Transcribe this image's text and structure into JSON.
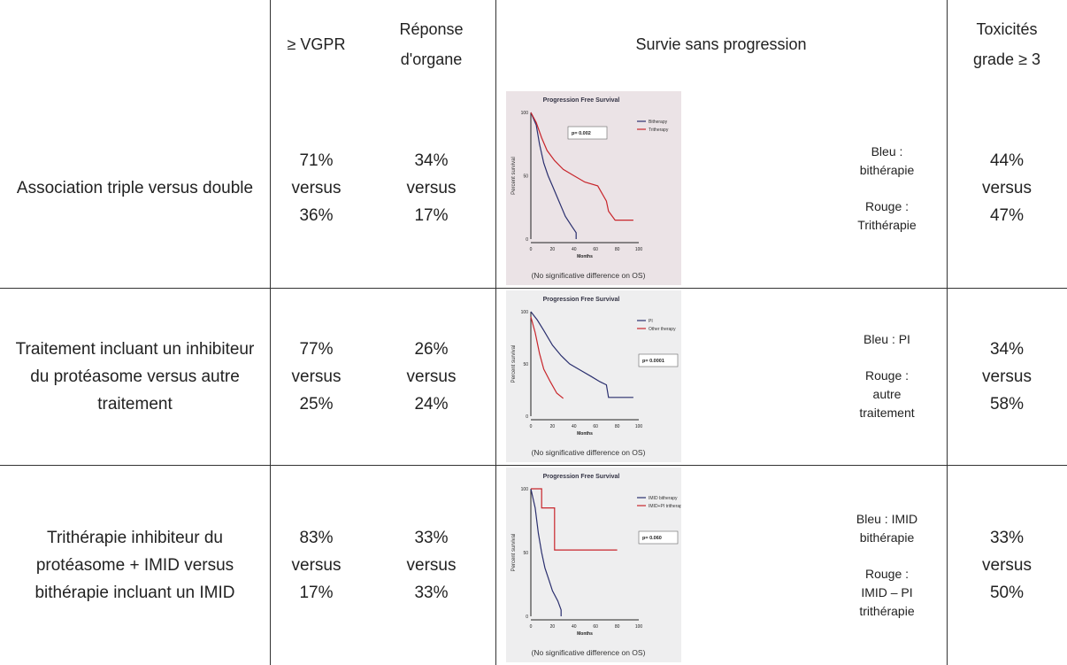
{
  "header": {
    "vgpr": "≥ VGPR",
    "organe": "Réponse d'organe",
    "survie": "Survie sans progression",
    "toxicites": "Toxicités grade ≥ 3"
  },
  "rows": [
    {
      "label": "Association triple versus double",
      "vgpr": [
        "71%",
        "versus",
        "36%"
      ],
      "organe": [
        "34%",
        "versus",
        "17%"
      ],
      "plot": {
        "title": "Progression Free Survival",
        "p_value": "p= 0.002",
        "legend": [
          "Bitherapy",
          "Tritherapy"
        ],
        "y_label": "Percent survival",
        "x_label": "Months",
        "yticks": [
          "0",
          "50",
          "100"
        ],
        "xticks": [
          "0",
          "20",
          "40",
          "60",
          "80",
          "100"
        ],
        "note": "(No significative difference on OS)"
      },
      "colors": [
        "Bleu : bithérapie",
        "Rouge : Trithérapie"
      ],
      "toxicites": [
        "44%",
        "versus",
        "47%"
      ]
    },
    {
      "label": "Traitement incluant un inhibiteur du protéasome versus autre traitement",
      "vgpr": [
        "77%",
        "versus",
        "25%"
      ],
      "organe": [
        "26%",
        "versus",
        "24%"
      ],
      "plot": {
        "title": "Progression Free Survival",
        "p_value": "p= 0.0001",
        "legend": [
          "PI",
          "Other therapy"
        ],
        "y_label": "Percent survival",
        "x_label": "Months",
        "yticks": [
          "0",
          "50",
          "100"
        ],
        "xticks": [
          "0",
          "20",
          "40",
          "60",
          "80",
          "100"
        ],
        "note": "(No significative difference on OS)"
      },
      "colors": [
        "Bleu : PI",
        "Rouge : autre traitement"
      ],
      "toxicites": [
        "34%",
        "versus",
        "58%"
      ]
    },
    {
      "label": "Trithérapie inhibiteur du protéasome + IMID versus bithérapie incluant un IMID",
      "vgpr": [
        "83%",
        "versus",
        "17%"
      ],
      "organe": [
        "33%",
        "versus",
        "33%"
      ],
      "plot": {
        "title": "Progression Free Survival",
        "p_value": "p= 0.060",
        "legend": [
          "IMID bitherapy",
          "IMID+PI tritherapy"
        ],
        "y_label": "Percent survival",
        "x_label": "Months",
        "yticks": [
          "0",
          "50",
          "100"
        ],
        "xticks": [
          "0",
          "20",
          "40",
          "60",
          "80",
          "100"
        ],
        "note": "(No significative difference on OS)"
      },
      "colors": [
        "Bleu : IMID bithérapie",
        "Rouge : IMID – PI trithérapie"
      ],
      "toxicites": [
        "33%",
        "versus",
        "50%"
      ]
    }
  ]
}
